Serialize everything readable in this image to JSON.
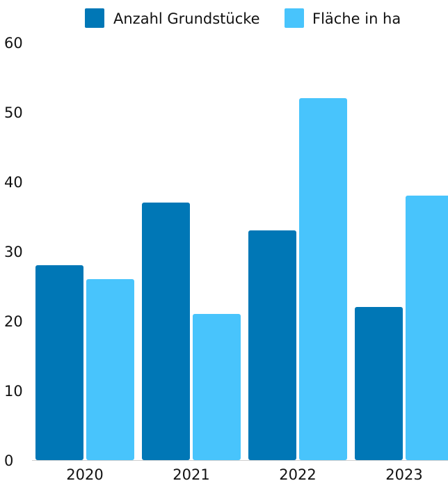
{
  "chart_data": {
    "type": "bar",
    "title": "",
    "xlabel": "",
    "ylabel": "",
    "categories": [
      "2020",
      "2021",
      "2022",
      "2023"
    ],
    "series": [
      {
        "name": "Anzahl Grundstücke",
        "values": [
          28,
          37,
          33,
          22
        ],
        "color": "#0077b6"
      },
      {
        "name": "Fläche in ha",
        "values": [
          26,
          21,
          52,
          38
        ],
        "color": "#48c4fc"
      }
    ],
    "ylim": [
      0,
      60
    ],
    "yticks": [
      0,
      10,
      20,
      30,
      40,
      50,
      60
    ],
    "grid": false,
    "legend": "top-center"
  }
}
